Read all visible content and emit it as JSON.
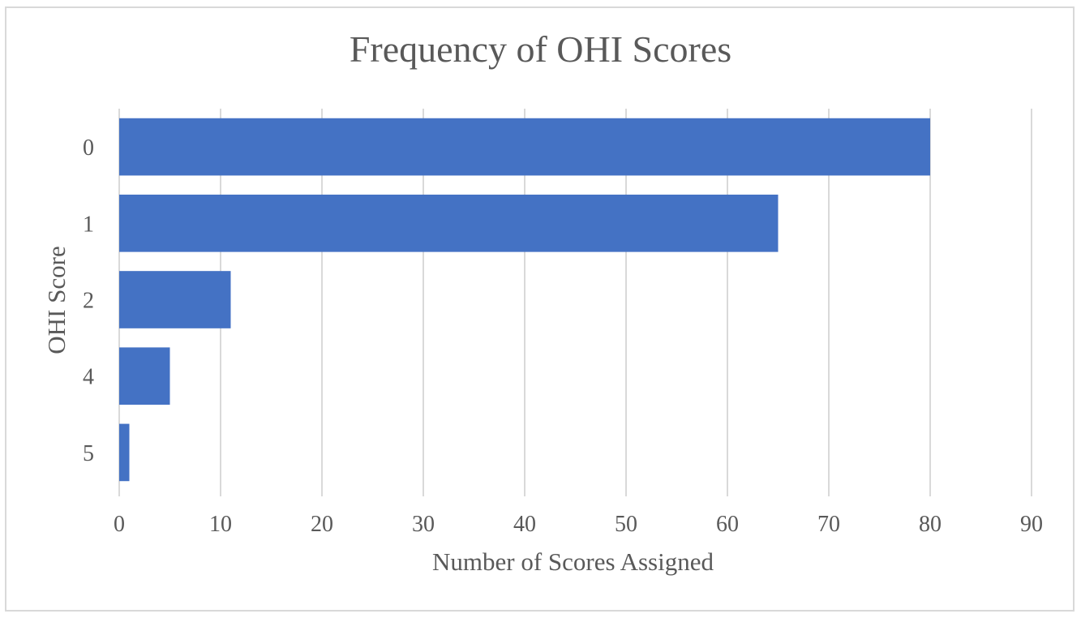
{
  "chart_data": {
    "type": "bar",
    "orientation": "horizontal",
    "title": "Frequency of OHI Scores",
    "xlabel": "Number of Scores Assigned",
    "ylabel": "OHI Score",
    "categories": [
      "0",
      "1",
      "2",
      "4",
      "5"
    ],
    "values": [
      80,
      65,
      11,
      5,
      1
    ],
    "xlim": [
      0,
      90
    ],
    "xticks": [
      0,
      10,
      20,
      30,
      40,
      50,
      60,
      70,
      80,
      90
    ],
    "grid": "vertical",
    "legend": "none",
    "bar_color": "#4472C4"
  }
}
